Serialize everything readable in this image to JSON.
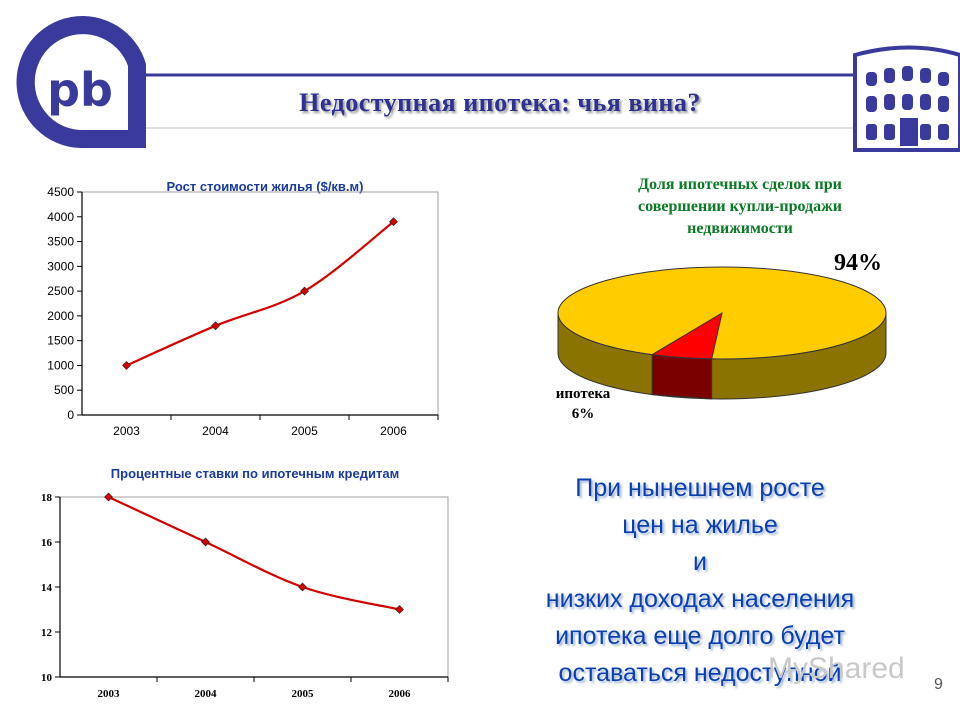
{
  "slide": {
    "title": "Недоступная ипотека: чья вина?",
    "page_number": "9",
    "watermark": "MyShared",
    "statement_lines": [
      "При нынешнем росте",
      "цен на жилье",
      "и",
      "низких доходах населения",
      "ипотека еще долго будет",
      "оставаться недоступной"
    ]
  },
  "colors": {
    "brand_blue": "#3a3a9c",
    "title_blue": "#2e3192",
    "chart_title_blue": "#1a3a9c",
    "pie_title_green": "#0a7a24",
    "statement_blue": "#0b3fb0",
    "line_red": "#d40000",
    "pie_yellow": "#ffcc00",
    "pie_red": "#ff0000"
  },
  "chart_data": [
    {
      "type": "line",
      "title": "Рост стоимости жилья ($/кв.м)",
      "categories": [
        "2003",
        "2004",
        "2005",
        "2006"
      ],
      "series": [
        {
          "values": [
            1000,
            1800,
            2500,
            3900
          ]
        }
      ],
      "ylim": [
        0,
        4500
      ],
      "yticks": [
        "0",
        "500",
        "1000",
        "1500",
        "2000",
        "2500",
        "3000",
        "3500",
        "4000",
        "4500"
      ],
      "grid": false
    },
    {
      "type": "line",
      "title": "Процентные ставки по ипотечным кредитам",
      "categories": [
        "2003",
        "2004",
        "2005",
        "2006"
      ],
      "series": [
        {
          "values": [
            18,
            16,
            14,
            13
          ]
        }
      ],
      "ylim": [
        10,
        18
      ],
      "yticks": [
        "10",
        "12",
        "14",
        "16",
        "18"
      ],
      "grid": false
    },
    {
      "type": "pie",
      "title": "Доля ипотечных сделок при совершении купли-продажи недвижимости",
      "title_lines": [
        "Доля ипотечных сделок при",
        "совершении купли-продажи",
        "недвижимости"
      ],
      "slices": [
        {
          "label": "",
          "value": 94,
          "value_label": "94%"
        },
        {
          "label": "ипотека",
          "value": 6,
          "value_label": "6%"
        }
      ]
    }
  ]
}
